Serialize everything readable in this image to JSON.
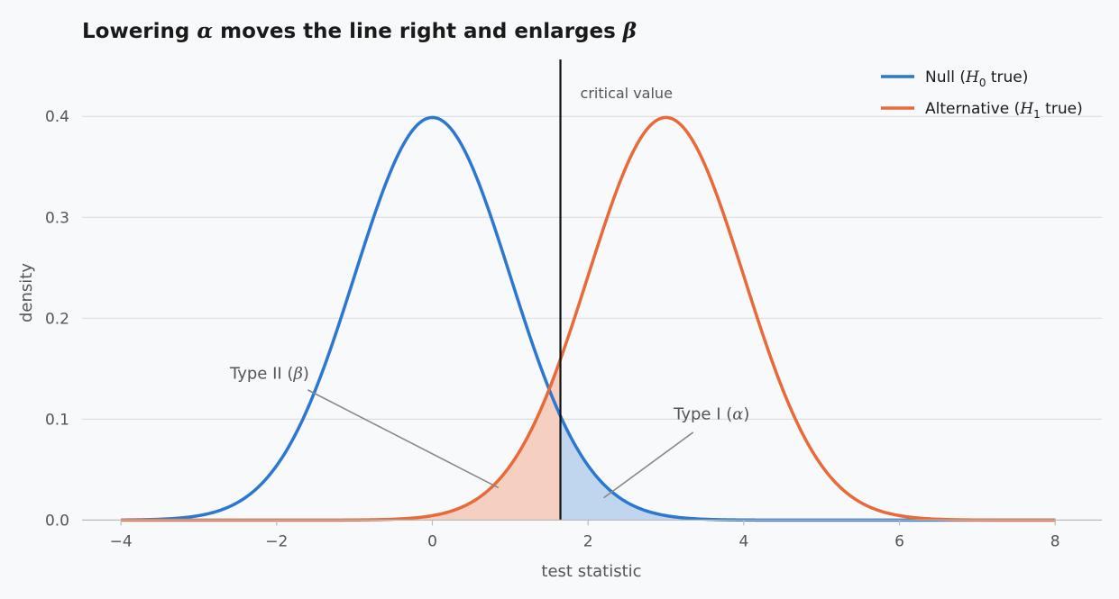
{
  "chart_data": {
    "type": "line",
    "title": {
      "prefix": "Lowering ",
      "alpha_symbol": "α",
      "middle": " moves the line right and enlarges ",
      "beta_symbol": "β"
    },
    "xlabel": "test statistic",
    "ylabel": "density",
    "xlim": [
      -4.5,
      8.6
    ],
    "ylim": [
      -0.005,
      0.46
    ],
    "x_ticks": [
      -4,
      -2,
      0,
      2,
      4,
      6,
      8
    ],
    "x_tick_labels": [
      "−4",
      "−2",
      "0",
      "2",
      "4",
      "6",
      "8"
    ],
    "y_ticks": [
      0.0,
      0.1,
      0.2,
      0.3,
      0.4
    ],
    "y_tick_labels": [
      "0.0",
      "0.1",
      "0.2",
      "0.3",
      "0.4"
    ],
    "grid": "horizontal",
    "legend_position": "top-right",
    "series": [
      {
        "name": {
          "prefix": "Null (",
          "symbol": "H",
          "subscript": "0",
          "suffix": " true)"
        },
        "distribution": "normal",
        "mean": 0,
        "sd": 1,
        "x_range": [
          -4,
          8
        ],
        "color": "#2c78d0"
      },
      {
        "name": {
          "prefix": "Alternative (",
          "symbol": "H",
          "subscript": "1",
          "suffix": " true)"
        },
        "distribution": "normal",
        "mean": 3,
        "sd": 1,
        "x_range": [
          -4,
          8
        ],
        "color": "#e8693a"
      }
    ],
    "critical_value": {
      "x": 1.645,
      "label": "critical value",
      "color": "#111111"
    },
    "shaded_regions": [
      {
        "name": "type-ii-region",
        "series": 1,
        "from": -4,
        "to": 1.645,
        "fill": "#f5cfc0"
      },
      {
        "name": "type-i-region",
        "series": 0,
        "from": 1.645,
        "to": 8,
        "fill": "#c0d6ee"
      }
    ],
    "annotations": [
      {
        "name": "type-ii-annotation",
        "label": {
          "prefix": "Type II (",
          "symbol": "β",
          "suffix": ")"
        },
        "text_at": [
          -2.6,
          0.14
        ],
        "arrow_from": [
          -1.6,
          0.129
        ],
        "arrow_to": [
          0.85,
          0.032
        ]
      },
      {
        "name": "type-i-annotation",
        "label": {
          "prefix": "Type I (",
          "symbol": "α",
          "suffix": ")"
        },
        "text_at": [
          3.1,
          0.1
        ],
        "arrow_from": [
          3.35,
          0.087
        ],
        "arrow_to": [
          2.2,
          0.022
        ]
      }
    ],
    "colors": {
      "grid": "#dcdfe2",
      "axis": "#bbbbbb",
      "annotation_line": "#888888"
    }
  }
}
